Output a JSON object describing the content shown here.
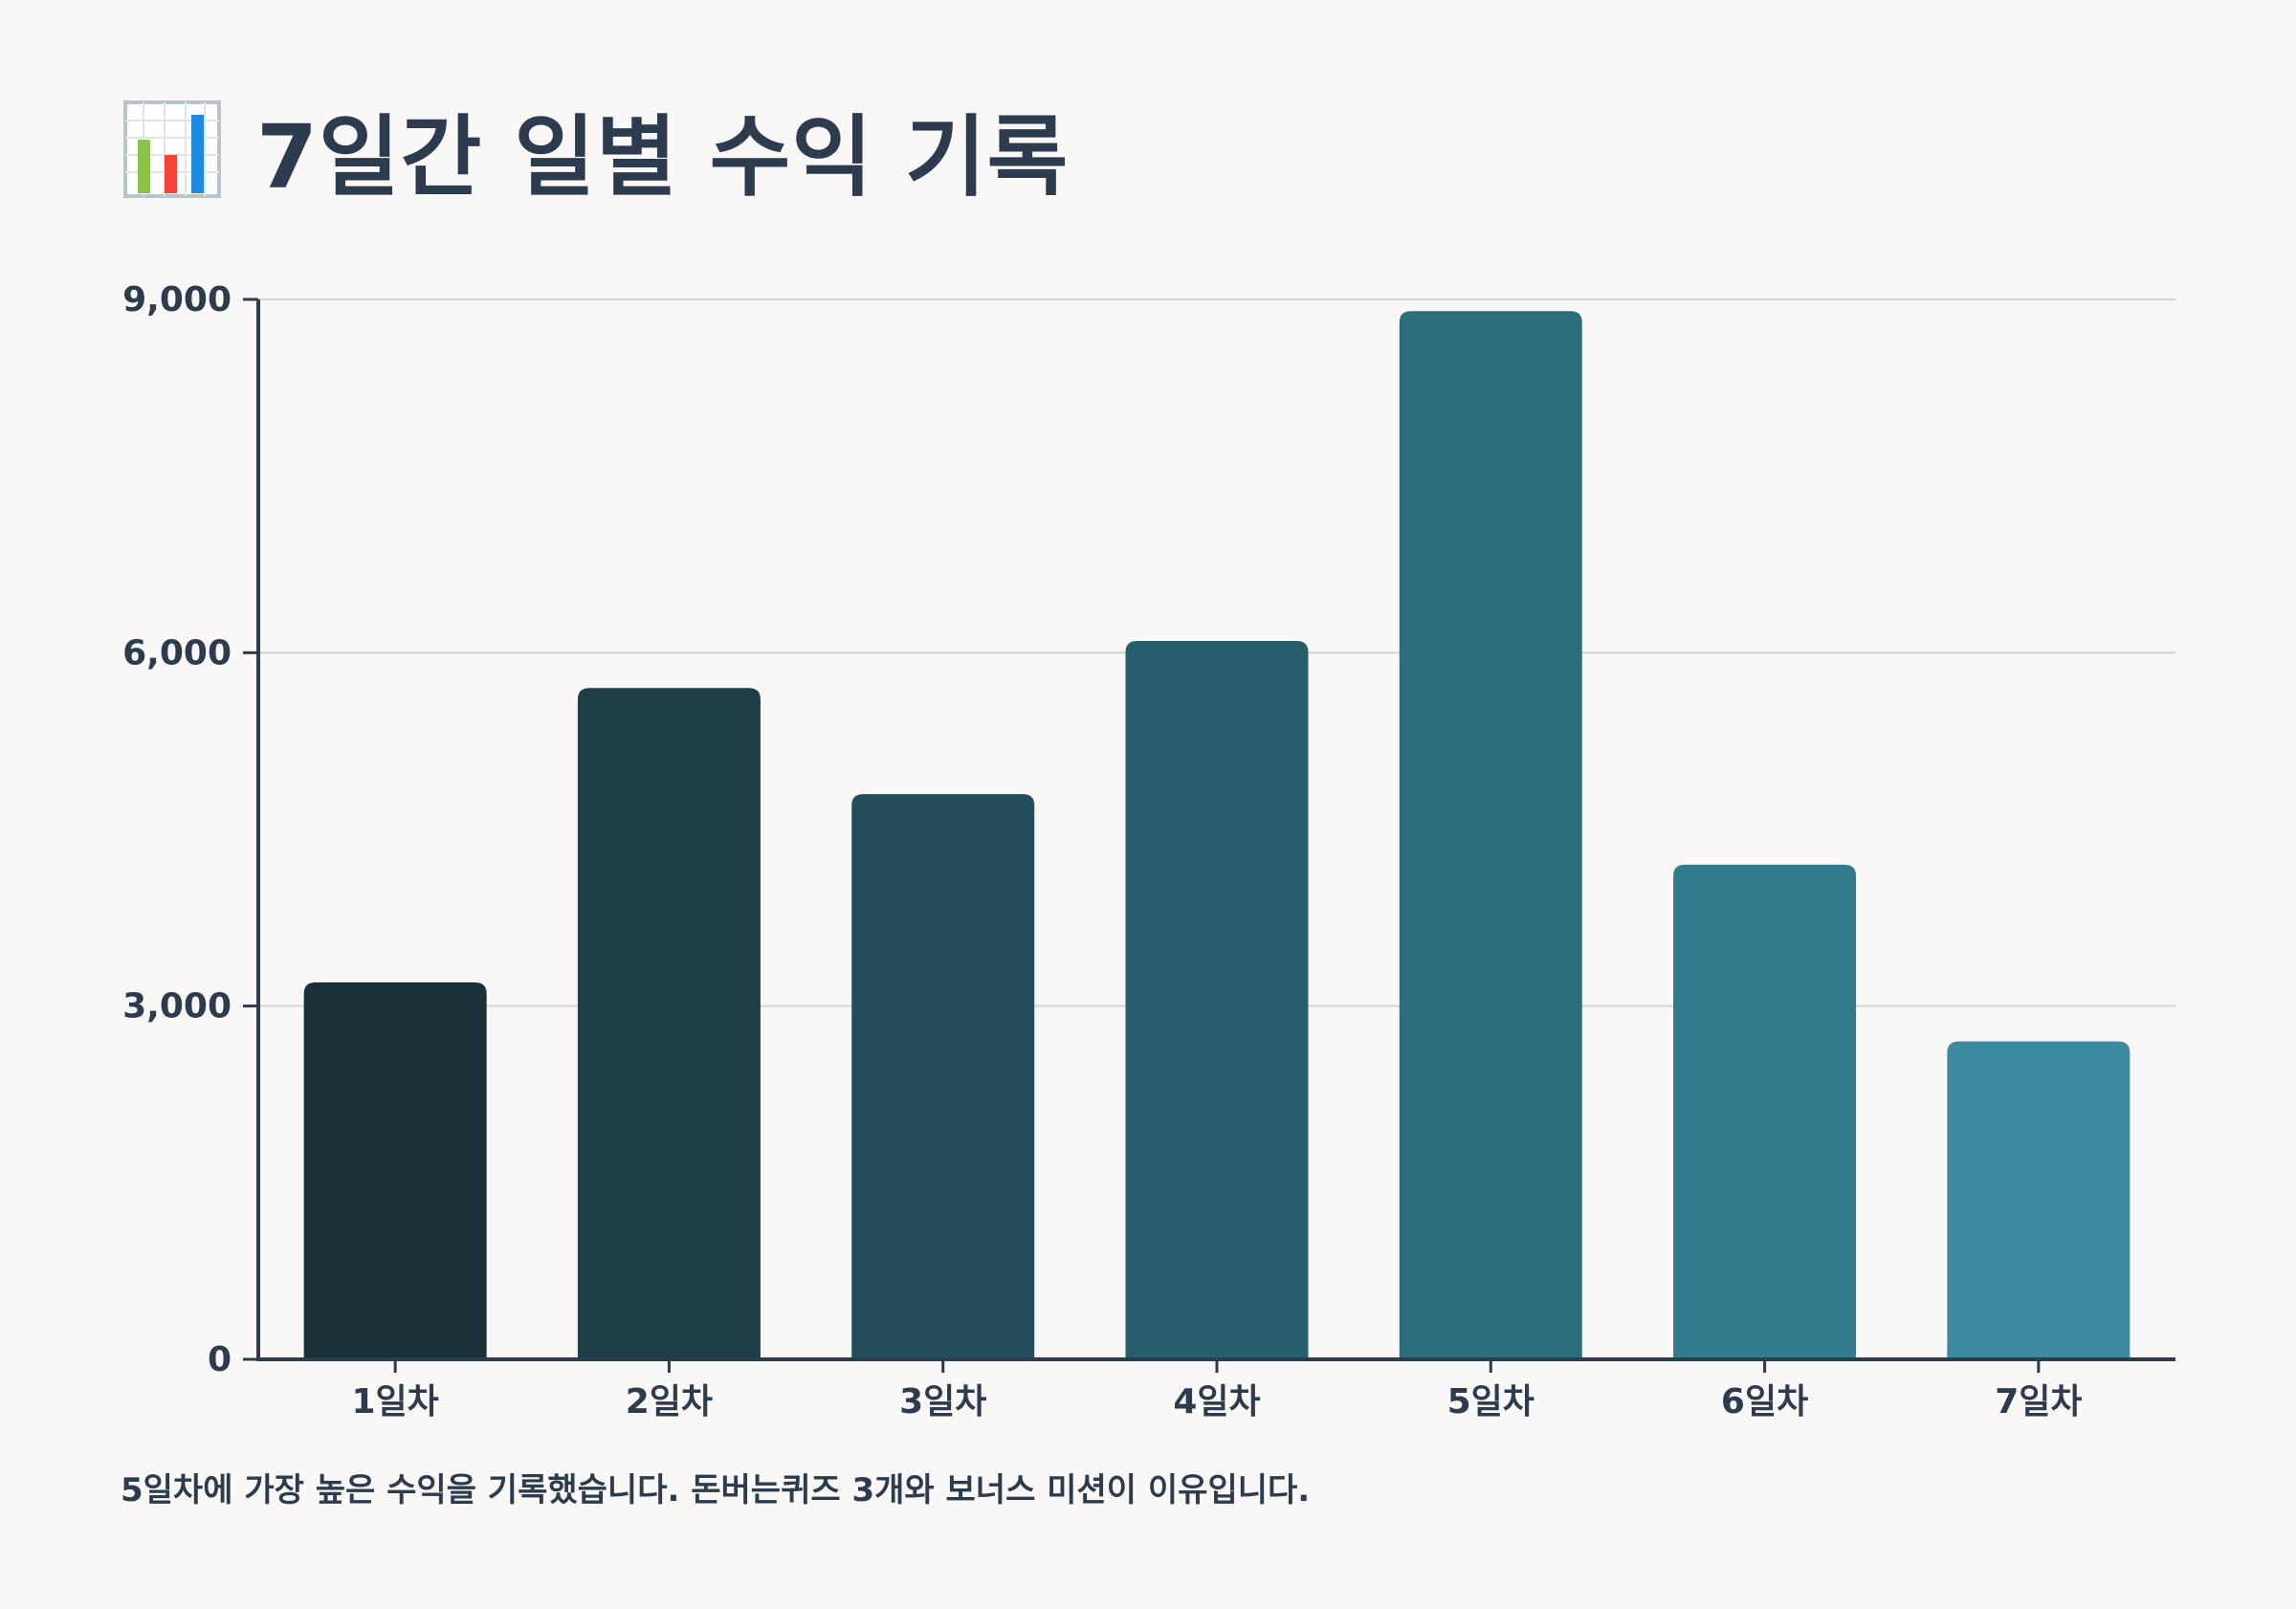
{
  "title": "7일간 일별 수익 기록",
  "title_icon": "bar-chart-emoji-icon",
  "caption": "5일차에 가장 높은 수익을 기록했습니다. 돈버는퀴즈 3개와 보너스 미션이 이유입니다.",
  "colors": {
    "background": "#f9f8f6",
    "text": "#2d3b4f",
    "axis": "#2d3b4f",
    "grid": "#d4d4d0",
    "bars": [
      "#183038",
      "#1e3d47",
      "#224f5b",
      "#285e6b",
      "#2d6e7c",
      "#317b8d",
      "#3b8aa0"
    ]
  },
  "chart_data": {
    "type": "bar",
    "title": "",
    "xlabel": "",
    "ylabel": "",
    "categories": [
      "1일차",
      "2일차",
      "3일차",
      "4일차",
      "5일차",
      "6일차",
      "7일차"
    ],
    "values": [
      3200,
      5700,
      4800,
      6100,
      8900,
      4200,
      2700
    ],
    "ylim": [
      0,
      9000
    ],
    "yticks": [
      0,
      3000,
      6000,
      9000
    ],
    "ytick_labels": [
      "0",
      "3,000",
      "6,000",
      "9,000"
    ],
    "grid": true,
    "legend": "none"
  }
}
